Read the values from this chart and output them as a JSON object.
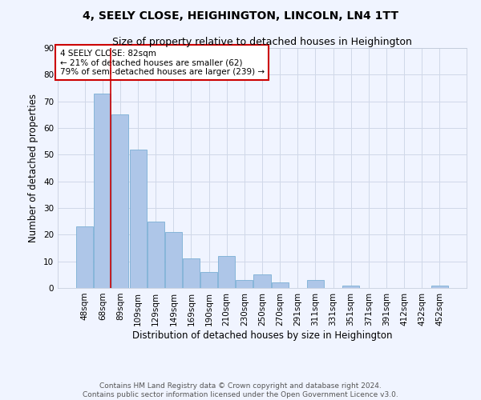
{
  "title": "4, SEELY CLOSE, HEIGHINGTON, LINCOLN, LN4 1TT",
  "subtitle": "Size of property relative to detached houses in Heighington",
  "xlabel": "Distribution of detached houses by size in Heighington",
  "ylabel": "Number of detached properties",
  "categories": [
    "48sqm",
    "68sqm",
    "89sqm",
    "109sqm",
    "129sqm",
    "149sqm",
    "169sqm",
    "190sqm",
    "210sqm",
    "230sqm",
    "250sqm",
    "270sqm",
    "291sqm",
    "311sqm",
    "331sqm",
    "351sqm",
    "371sqm",
    "391sqm",
    "412sqm",
    "432sqm",
    "452sqm"
  ],
  "values": [
    23,
    73,
    65,
    52,
    25,
    21,
    11,
    6,
    12,
    3,
    5,
    2,
    0,
    3,
    0,
    1,
    0,
    0,
    0,
    0,
    1
  ],
  "bar_color": "#aec6e8",
  "bar_edge_color": "#7bafd4",
  "grid_color": "#d0d8e8",
  "background_color": "#f0f4ff",
  "annotation_box_text": "4 SEELY CLOSE: 82sqm\n← 21% of detached houses are smaller (62)\n79% of semi-detached houses are larger (239) →",
  "annotation_box_color": "#ffffff",
  "annotation_box_edge_color": "#cc0000",
  "vline_color": "#cc0000",
  "ylim": [
    0,
    90
  ],
  "yticks": [
    0,
    10,
    20,
    30,
    40,
    50,
    60,
    70,
    80,
    90
  ],
  "footer": "Contains HM Land Registry data © Crown copyright and database right 2024.\nContains public sector information licensed under the Open Government Licence v3.0.",
  "title_fontsize": 10,
  "subtitle_fontsize": 9,
  "xlabel_fontsize": 8.5,
  "ylabel_fontsize": 8.5,
  "tick_fontsize": 7.5,
  "annotation_fontsize": 7.5,
  "footer_fontsize": 6.5
}
